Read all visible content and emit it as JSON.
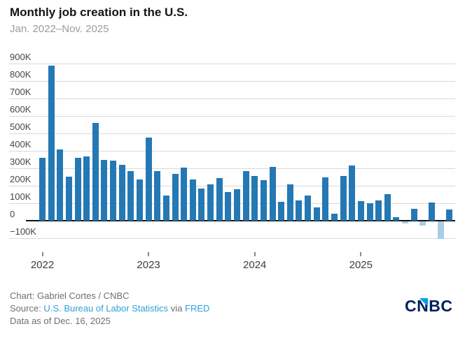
{
  "header": {
    "title": "Monthly job creation in the U.S.",
    "subtitle": "Jan. 2022–Nov. 2025"
  },
  "chart_data": {
    "type": "bar",
    "title": "Monthly job creation in the U.S.",
    "subtitle": "Jan. 2022–Nov. 2025",
    "unit": "thousands of jobs",
    "ylim": [
      -100,
      900
    ],
    "ystep": 100,
    "yunit": "K",
    "grid": true,
    "bar_color_positive": "#2478b4",
    "bar_color_negative": "#a9cde6",
    "year_tick_labels": [
      "2022",
      "2023",
      "2024",
      "2025"
    ],
    "categories": [
      "Jan 2022",
      "Feb 2022",
      "Mar 2022",
      "Apr 2022",
      "May 2022",
      "Jun 2022",
      "Jul 2022",
      "Aug 2022",
      "Sep 2022",
      "Oct 2022",
      "Nov 2022",
      "Dec 2022",
      "Jan 2023",
      "Feb 2023",
      "Mar 2023",
      "Apr 2023",
      "May 2023",
      "Jun 2023",
      "Jul 2023",
      "Aug 2023",
      "Sep 2023",
      "Oct 2023",
      "Nov 2023",
      "Dec 2023",
      "Jan 2024",
      "Feb 2024",
      "Mar 2024",
      "Apr 2024",
      "May 2024",
      "Jun 2024",
      "Jul 2024",
      "Aug 2024",
      "Sep 2024",
      "Oct 2024",
      "Nov 2024",
      "Dec 2024",
      "Jan 2025",
      "Feb 2025",
      "Mar 2025",
      "Apr 2025",
      "May 2025",
      "Jun 2025",
      "Jul 2025",
      "Aug 2025",
      "Sep 2025",
      "Oct 2025",
      "Nov 2025"
    ],
    "values": [
      360,
      890,
      410,
      253,
      360,
      370,
      560,
      350,
      345,
      320,
      285,
      235,
      475,
      285,
      145,
      270,
      305,
      235,
      185,
      210,
      245,
      165,
      180,
      285,
      257,
      233,
      308,
      108,
      210,
      117,
      144,
      77,
      250,
      41,
      257,
      318,
      111,
      100,
      117,
      153,
      20,
      -15,
      70,
      -27,
      105,
      -105,
      64
    ]
  },
  "footer": {
    "credit": "Chart: Gabriel Cortes / CNBC",
    "source_prefix": "Source: ",
    "source_link_1": "U.S. Bureau of Labor Statistics",
    "source_middle": " via ",
    "source_link_2": "FRED",
    "data_as_of": "Data as of Dec. 16, 2025"
  },
  "logo": {
    "text": "CNBC"
  }
}
